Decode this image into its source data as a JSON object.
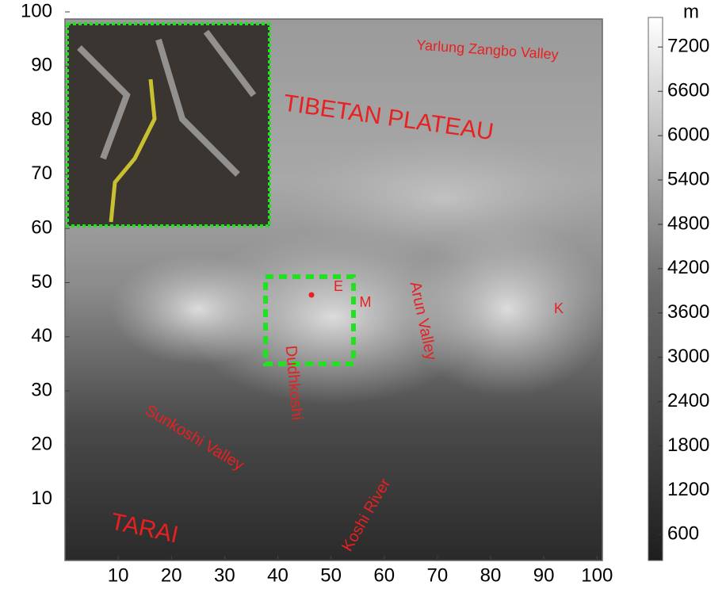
{
  "map": {
    "xlim": [
      0,
      101
    ],
    "ylim": [
      0,
      100
    ],
    "xticks": [
      10,
      20,
      30,
      40,
      50,
      60,
      70,
      80,
      90,
      100
    ],
    "yticks": [
      10,
      20,
      30,
      40,
      50,
      60,
      70,
      80,
      90,
      100
    ],
    "colorbar": {
      "unit": "m",
      "lim": [
        250,
        7600
      ],
      "ticks": [
        600,
        1200,
        1800,
        2400,
        3000,
        3600,
        4200,
        4800,
        5400,
        6000,
        6600,
        7200
      ]
    },
    "labels": {
      "yarlung": "Yarlung Zangbo Valley",
      "plateau": "TIBETAN PLATEAU",
      "e": "E",
      "m": "M",
      "k": "K",
      "arun": "Arun Valley",
      "dudhkoshi": "Dudhkoshi",
      "sunkoshi": "Sunkoshi Valley",
      "tarai": "TARAI",
      "koshi": "Koshi River"
    }
  }
}
